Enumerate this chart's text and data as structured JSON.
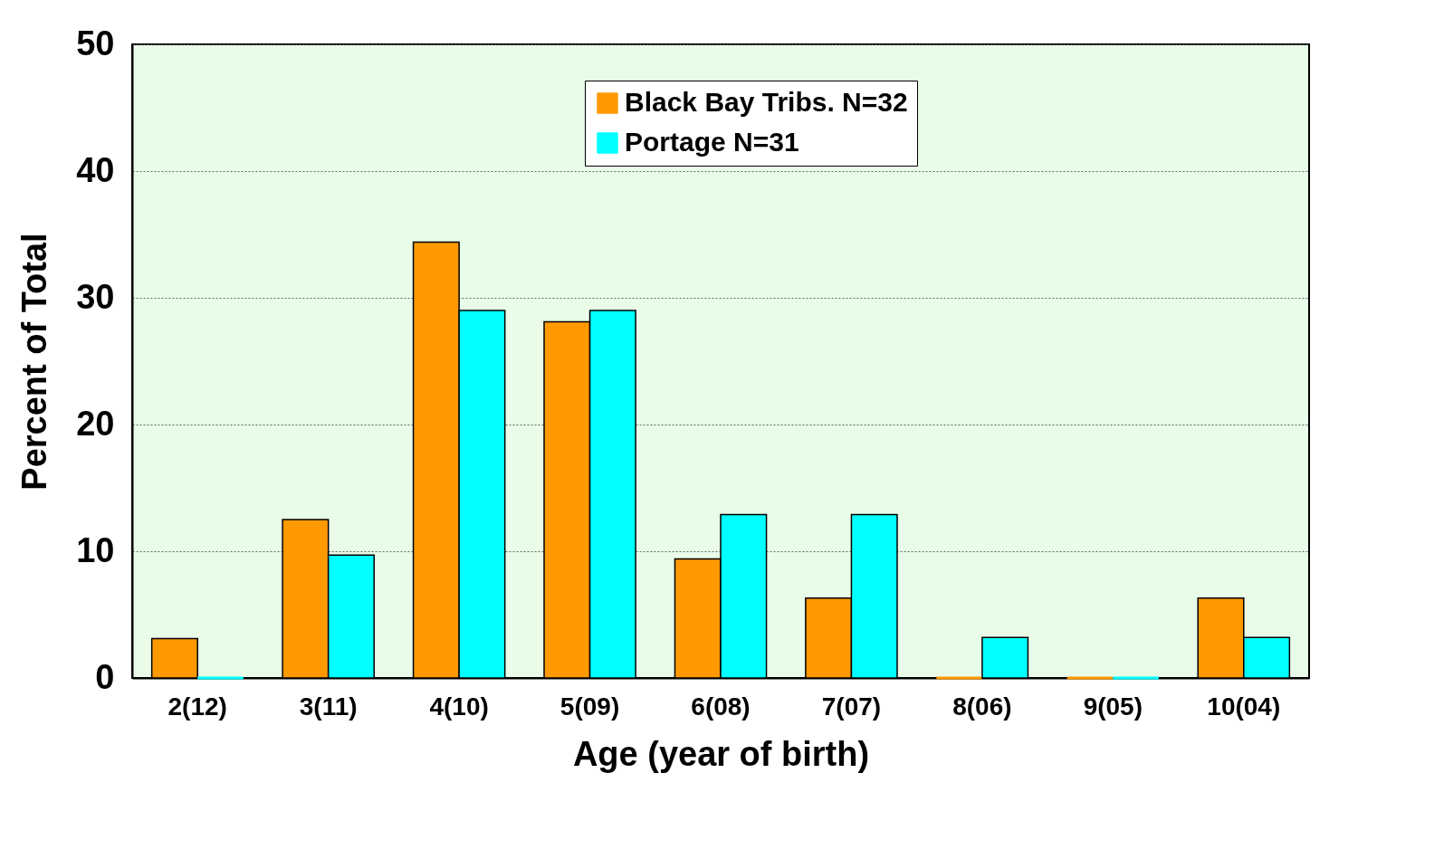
{
  "chart_data": {
    "type": "bar",
    "xlabel": "Age (year of birth)",
    "ylabel": "Percent of Total",
    "categories": [
      "2(12)",
      "3(11)",
      "4(10)",
      "5(09)",
      "6(08)",
      "7(07)",
      "8(06)",
      "9(05)",
      "10(04)"
    ],
    "series": [
      {
        "name": "Black Bay Tribs. N=32",
        "color": "#ff9900",
        "values": [
          3.1,
          12.5,
          34.4,
          28.1,
          9.4,
          6.3,
          0,
          0,
          6.3
        ]
      },
      {
        "name": "Portage N=31",
        "color": "#00ffff",
        "values": [
          0,
          9.7,
          29.0,
          29.0,
          12.9,
          12.9,
          3.2,
          0,
          3.2
        ]
      }
    ],
    "ylim": [
      0,
      50
    ],
    "yticks": [
      0,
      10,
      20,
      30,
      40,
      50
    ],
    "grid": "y",
    "legend": "top"
  }
}
